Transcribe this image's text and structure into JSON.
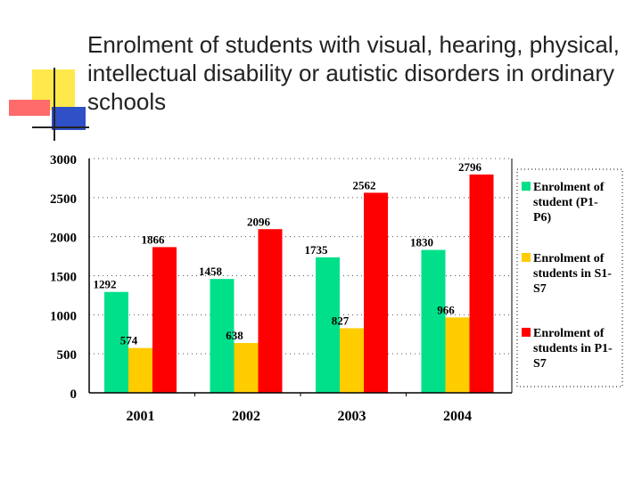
{
  "slide": {
    "title": "Enrolment of students with visual, hearing, physical, intellectual disability or autistic disorders in ordinary schools"
  },
  "colors": {
    "series_1": "#00E08A",
    "series_2": "#FFCC00",
    "series_3": "#FF0000",
    "deco_yellow": "#FFE84A",
    "deco_red": "#FF6A6A",
    "deco_blue": "#3050C8"
  },
  "chart_data": {
    "type": "bar",
    "categories": [
      "2001",
      "2002",
      "2003",
      "2004"
    ],
    "series": [
      {
        "name": "Enrolment of student (P1-P6)",
        "legend_lines": [
          "Enrolment of",
          "student (P1-",
          "P6)"
        ],
        "values": [
          1292,
          1458,
          1735,
          1830
        ]
      },
      {
        "name": "Enrolment of students in S1-S7",
        "legend_lines": [
          "Enrolment of",
          "students in S1-",
          "S7"
        ],
        "values": [
          574,
          638,
          827,
          966
        ]
      },
      {
        "name": "Enrolment of students in P1-S7",
        "legend_lines": [
          "Enrolment of",
          "students in P1-",
          "S7"
        ],
        "values": [
          1866,
          2096,
          2562,
          2796
        ]
      }
    ],
    "ylim": [
      0,
      3000
    ],
    "yticks": [
      0,
      500,
      1000,
      1500,
      2000,
      2500,
      3000
    ],
    "grid": true,
    "legend": "right"
  }
}
